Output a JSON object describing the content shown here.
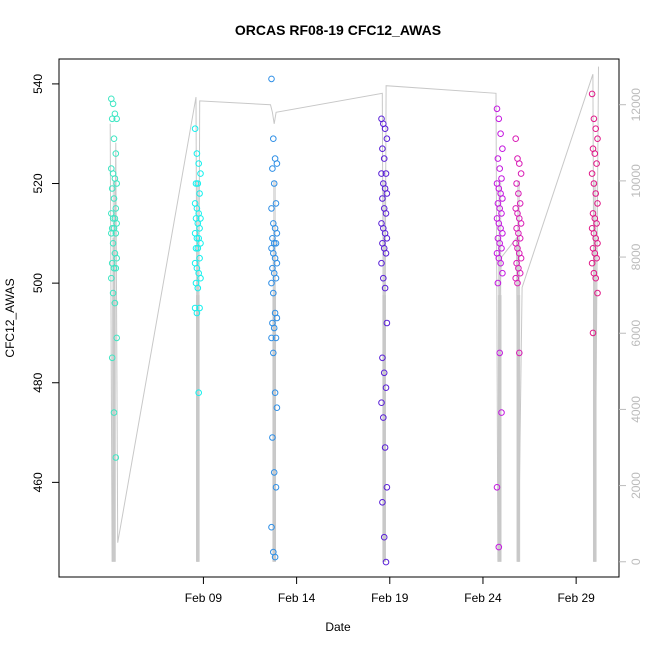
{
  "chart_data": {
    "type": "scatter",
    "title": "ORCAS RF08-19 CFC12_AWAS",
    "xlabel": "Date",
    "ylabel": "CFC12_AWAS",
    "x_ticks": [
      "Feb 09",
      "Feb 14",
      "Feb 19",
      "Feb 24",
      "Feb 29"
    ],
    "y_ticks": [
      460,
      480,
      500,
      520,
      540
    ],
    "y2_ticks": [
      0,
      2000,
      4000,
      6000,
      8000,
      10000,
      12000
    ],
    "ylim": [
      441,
      545
    ],
    "y2lim": [
      -400,
      13200
    ],
    "y2_color": "#bbbbbb",
    "grid": false,
    "notes_secondary_axis": "altitude line (gray) plotted against right axis",
    "flights": [
      {
        "day": 4.2,
        "color": "#3ee6c3",
        "values": [
          537,
          536,
          534,
          533,
          533,
          529,
          526,
          523,
          522,
          521,
          520,
          519,
          517,
          515,
          514,
          513,
          513,
          512,
          511,
          511,
          510,
          510,
          508,
          506,
          505,
          504,
          503,
          503,
          501,
          498,
          496,
          489,
          485,
          474,
          465
        ]
      },
      {
        "day": 8.7,
        "color": "#14f0ee",
        "values": [
          531,
          526,
          524,
          522,
          520,
          520,
          518,
          516,
          515,
          514,
          513,
          513,
          512,
          511,
          510,
          509,
          509,
          508,
          507,
          507,
          505,
          504,
          503,
          502,
          501,
          500,
          499,
          495,
          495,
          494,
          478
        ]
      },
      {
        "day": 12.8,
        "color": "#2f8fe6",
        "values": [
          541,
          529,
          525,
          524,
          523,
          520,
          516,
          515,
          512,
          511,
          510,
          509,
          508,
          508,
          507,
          506,
          505,
          504,
          503,
          502,
          501,
          500,
          498,
          494,
          493,
          492,
          491,
          489,
          489,
          486,
          478,
          475,
          469,
          462,
          459,
          451,
          446,
          445
        ]
      },
      {
        "day": 18.7,
        "color": "#5a20d8",
        "values": [
          533,
          532,
          531,
          529,
          527,
          525,
          522,
          522,
          520,
          519,
          518,
          517,
          515,
          514,
          512,
          511,
          510,
          509,
          508,
          507,
          506,
          504,
          501,
          499,
          492,
          485,
          482,
          479,
          476,
          473,
          467,
          459,
          456,
          449,
          444
        ]
      },
      {
        "day": 24.9,
        "color": "#c418e0",
        "values": [
          535,
          533,
          530,
          527,
          525,
          523,
          521,
          520,
          519,
          518,
          517,
          516,
          515,
          514,
          513,
          512,
          511,
          510,
          509,
          508,
          507,
          506,
          505,
          504,
          502,
          500,
          486,
          474,
          459,
          447
        ]
      },
      {
        "day": 25.9,
        "color": "#d91cb5",
        "values": [
          529,
          525,
          524,
          522,
          520,
          518,
          516,
          515,
          514,
          513,
          512,
          511,
          510,
          509,
          508,
          507,
          506,
          505,
          504,
          503,
          502,
          501,
          500,
          486
        ]
      },
      {
        "day": 30.0,
        "color": "#e01888",
        "values": [
          538,
          533,
          531,
          529,
          527,
          526,
          524,
          522,
          520,
          518,
          516,
          514,
          513,
          512,
          511,
          510,
          509,
          508,
          507,
          506,
          505,
          504,
          502,
          501,
          498,
          490
        ]
      }
    ]
  }
}
